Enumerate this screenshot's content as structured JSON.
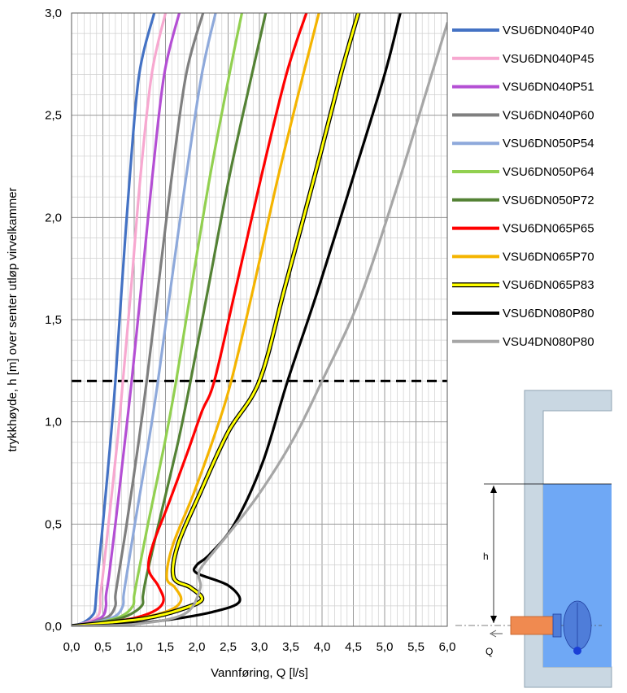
{
  "chart_data": {
    "type": "line",
    "xlabel": "Vannføring, Q [l/s]",
    "ylabel": "trykkhøyde, h [m] over senter utløp virvelkammer",
    "xlim": [
      0,
      6
    ],
    "ylim": [
      0,
      3
    ],
    "x_ticks": [
      "0,0",
      "0,5",
      "1,0",
      "1,5",
      "2,0",
      "2,5",
      "3,0",
      "3,5",
      "4,0",
      "4,5",
      "5,0",
      "5,5",
      "6,0"
    ],
    "y_ticks": [
      "0,0",
      "0,5",
      "1,0",
      "1,5",
      "2,0",
      "2,5",
      "3,0"
    ],
    "grid": true,
    "legend_position": "right",
    "reference_line": {
      "y": 1.2,
      "style": "dashed",
      "color": "#000000"
    },
    "series": [
      {
        "name": "VSU6DN040P40",
        "color": "#4472C4",
        "points": [
          [
            0,
            0
          ],
          [
            0.2,
            0.02
          ],
          [
            0.35,
            0.06
          ],
          [
            0.38,
            0.1
          ],
          [
            0.39,
            0.14
          ],
          [
            0.42,
            0.25
          ],
          [
            0.5,
            0.5
          ],
          [
            0.62,
            0.9
          ],
          [
            0.7,
            1.2
          ],
          [
            0.8,
            1.65
          ],
          [
            0.93,
            2.2
          ],
          [
            1.08,
            2.7
          ],
          [
            1.32,
            3.0
          ]
        ]
      },
      {
        "name": "VSU6DN040P45",
        "color": "#F7A8D0",
        "points": [
          [
            0,
            0
          ],
          [
            0.25,
            0.02
          ],
          [
            0.42,
            0.05
          ],
          [
            0.46,
            0.1
          ],
          [
            0.46,
            0.15
          ],
          [
            0.5,
            0.25
          ],
          [
            0.59,
            0.5
          ],
          [
            0.73,
            0.9
          ],
          [
            0.82,
            1.2
          ],
          [
            0.95,
            1.65
          ],
          [
            1.1,
            2.2
          ],
          [
            1.28,
            2.7
          ],
          [
            1.5,
            3.0
          ]
        ]
      },
      {
        "name": "VSU6DN040P51",
        "color": "#B44FD4",
        "points": [
          [
            0,
            0
          ],
          [
            0.3,
            0.02
          ],
          [
            0.5,
            0.05
          ],
          [
            0.55,
            0.1
          ],
          [
            0.55,
            0.15
          ],
          [
            0.6,
            0.25
          ],
          [
            0.7,
            0.5
          ],
          [
            0.85,
            0.9
          ],
          [
            0.96,
            1.2
          ],
          [
            1.11,
            1.65
          ],
          [
            1.29,
            2.2
          ],
          [
            1.48,
            2.7
          ],
          [
            1.72,
            3.0
          ]
        ]
      },
      {
        "name": "VSU6DN040P60",
        "color": "#7F7F7F",
        "points": [
          [
            0,
            0
          ],
          [
            0.35,
            0.02
          ],
          [
            0.6,
            0.05
          ],
          [
            0.7,
            0.1
          ],
          [
            0.7,
            0.15
          ],
          [
            0.75,
            0.25
          ],
          [
            0.88,
            0.5
          ],
          [
            1.07,
            0.9
          ],
          [
            1.2,
            1.2
          ],
          [
            1.38,
            1.65
          ],
          [
            1.6,
            2.2
          ],
          [
            1.83,
            2.7
          ],
          [
            2.1,
            3.0
          ]
        ]
      },
      {
        "name": "VSU6DN050P54",
        "color": "#8EA9DB",
        "points": [
          [
            0,
            0
          ],
          [
            0.4,
            0.02
          ],
          [
            0.7,
            0.05
          ],
          [
            0.82,
            0.1
          ],
          [
            0.83,
            0.15
          ],
          [
            0.88,
            0.25
          ],
          [
            1.01,
            0.5
          ],
          [
            1.23,
            0.9
          ],
          [
            1.38,
            1.2
          ],
          [
            1.58,
            1.65
          ],
          [
            1.83,
            2.2
          ],
          [
            2.08,
            2.7
          ],
          [
            2.3,
            3.0
          ]
        ]
      },
      {
        "name": "VSU6DN050P64",
        "color": "#92D050",
        "points": [
          [
            0,
            0
          ],
          [
            0.45,
            0.02
          ],
          [
            0.8,
            0.05
          ],
          [
            0.98,
            0.1
          ],
          [
            1.0,
            0.15
          ],
          [
            1.06,
            0.25
          ],
          [
            1.22,
            0.5
          ],
          [
            1.49,
            0.9
          ],
          [
            1.67,
            1.2
          ],
          [
            1.91,
            1.65
          ],
          [
            2.21,
            2.2
          ],
          [
            2.52,
            2.7
          ],
          [
            2.72,
            3.0
          ]
        ]
      },
      {
        "name": "VSU6DN050P72",
        "color": "#548235",
        "points": [
          [
            0,
            0
          ],
          [
            0.5,
            0.02
          ],
          [
            0.88,
            0.05
          ],
          [
            1.12,
            0.1
          ],
          [
            1.14,
            0.15
          ],
          [
            1.2,
            0.25
          ],
          [
            1.39,
            0.5
          ],
          [
            1.7,
            0.9
          ],
          [
            1.9,
            1.2
          ],
          [
            2.18,
            1.65
          ],
          [
            2.52,
            2.2
          ],
          [
            2.88,
            2.7
          ],
          [
            3.1,
            3.0
          ]
        ]
      },
      {
        "name": "VSU6DN065P65",
        "color": "#FF0000",
        "points": [
          [
            0,
            0
          ],
          [
            0.55,
            0.02
          ],
          [
            1.0,
            0.04
          ],
          [
            1.35,
            0.08
          ],
          [
            1.47,
            0.13
          ],
          [
            1.38,
            0.2
          ],
          [
            1.23,
            0.28
          ],
          [
            1.3,
            0.4
          ],
          [
            1.55,
            0.6
          ],
          [
            1.85,
            0.85
          ],
          [
            2.08,
            1.05
          ],
          [
            2.28,
            1.2
          ],
          [
            2.62,
            1.65
          ],
          [
            3.03,
            2.2
          ],
          [
            3.43,
            2.7
          ],
          [
            3.75,
            3.0
          ]
        ]
      },
      {
        "name": "VSU6DN065P70",
        "color": "#F4B400",
        "points": [
          [
            0,
            0
          ],
          [
            0.6,
            0.02
          ],
          [
            1.1,
            0.04
          ],
          [
            1.58,
            0.08
          ],
          [
            1.75,
            0.13
          ],
          [
            1.65,
            0.19
          ],
          [
            1.52,
            0.24
          ],
          [
            1.62,
            0.4
          ],
          [
            1.95,
            0.65
          ],
          [
            2.3,
            0.95
          ],
          [
            2.55,
            1.2
          ],
          [
            2.9,
            1.65
          ],
          [
            3.3,
            2.2
          ],
          [
            3.7,
            2.7
          ],
          [
            3.95,
            3.0
          ]
        ]
      },
      {
        "name": "VSU6DN065P83",
        "color": "#FFFF00",
        "outline": true,
        "points": [
          [
            0,
            0
          ],
          [
            0.65,
            0.02
          ],
          [
            1.2,
            0.04
          ],
          [
            1.72,
            0.08
          ],
          [
            2.08,
            0.13
          ],
          [
            1.9,
            0.19
          ],
          [
            1.63,
            0.24
          ],
          [
            1.7,
            0.4
          ],
          [
            2.05,
            0.65
          ],
          [
            2.5,
            0.95
          ],
          [
            3.0,
            1.2
          ],
          [
            3.4,
            1.65
          ],
          [
            3.88,
            2.2
          ],
          [
            4.3,
            2.7
          ],
          [
            4.58,
            3.0
          ]
        ]
      },
      {
        "name": "VSU6DN080P80",
        "color": "#000000",
        "points": [
          [
            0,
            0
          ],
          [
            0.8,
            0.01
          ],
          [
            1.5,
            0.03
          ],
          [
            2.25,
            0.07
          ],
          [
            2.68,
            0.12
          ],
          [
            2.5,
            0.2
          ],
          [
            2.0,
            0.26
          ],
          [
            2.0,
            0.3
          ],
          [
            2.2,
            0.35
          ],
          [
            2.6,
            0.5
          ],
          [
            3.05,
            0.8
          ],
          [
            3.45,
            1.2
          ],
          [
            3.94,
            1.65
          ],
          [
            4.5,
            2.2
          ],
          [
            5.0,
            2.7
          ],
          [
            5.25,
            3.0
          ]
        ]
      },
      {
        "name": "VSU4DN080P80",
        "color": "#A6A6A6",
        "points": [
          [
            0,
            0
          ],
          [
            1.0,
            0.01
          ],
          [
            1.8,
            0.06
          ],
          [
            2.05,
            0.18
          ],
          [
            2.03,
            0.25
          ],
          [
            2.1,
            0.3
          ],
          [
            2.5,
            0.45
          ],
          [
            3.0,
            0.65
          ],
          [
            3.55,
            0.92
          ],
          [
            4.0,
            1.2
          ],
          [
            4.6,
            1.6
          ],
          [
            5.2,
            2.15
          ],
          [
            5.6,
            2.55
          ],
          [
            6.0,
            2.95
          ]
        ]
      }
    ]
  },
  "inset": {
    "h_label": "h",
    "q_label": "Q"
  }
}
